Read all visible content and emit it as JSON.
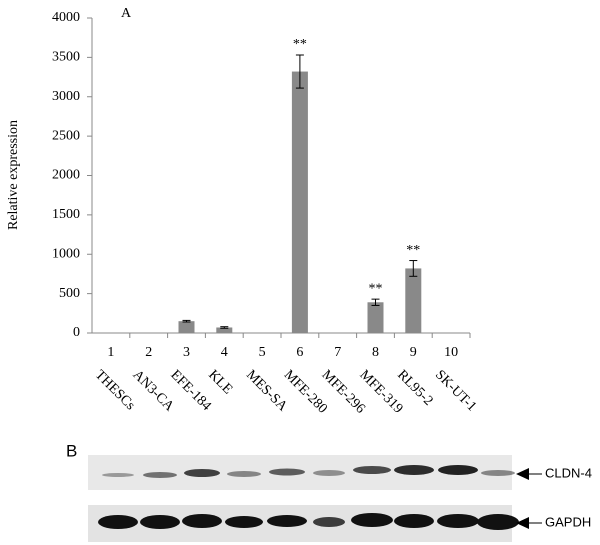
{
  "chart_data": {
    "type": "bar",
    "panel_label": "A",
    "y_label": "Relative expression",
    "categories": [
      "1",
      "2",
      "3",
      "4",
      "5",
      "6",
      "7",
      "8",
      "9",
      "10"
    ],
    "category_names": [
      "THESCs",
      "AN3-CA",
      "EFE-184",
      "KLE",
      "MES-SA",
      "MFE-280",
      "MFE-296",
      "MFE-319",
      "RL95-2",
      "SK-UT-1"
    ],
    "values": [
      0,
      0,
      150,
      70,
      0,
      3320,
      0,
      390,
      820,
      0
    ],
    "errors": [
      null,
      null,
      10,
      10,
      null,
      210,
      null,
      40,
      100,
      null
    ],
    "value_annotations": [
      null,
      null,
      null,
      null,
      null,
      "**",
      null,
      "**",
      "**",
      null
    ],
    "color": "#898989",
    "ylim": [
      0,
      4000
    ],
    "yticks": [
      0,
      500,
      1000,
      1500,
      2000,
      2500,
      3000,
      3500,
      4000
    ]
  },
  "blot": {
    "panel_label": "B",
    "rows": [
      "CLDN-4",
      "GAPDH"
    ]
  }
}
